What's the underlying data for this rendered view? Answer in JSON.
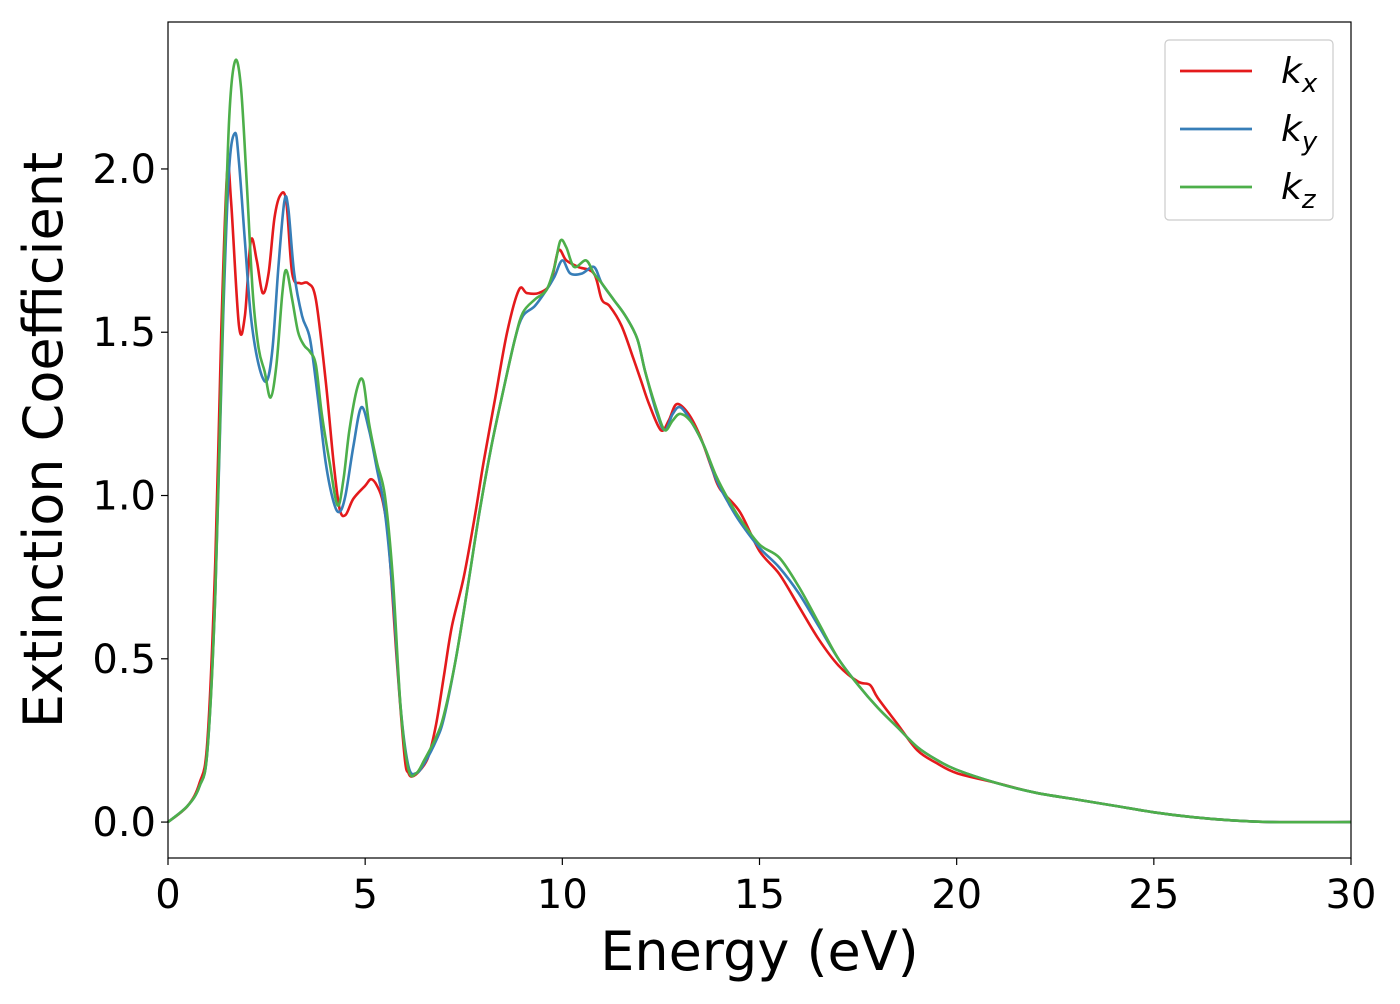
{
  "chart_data": {
    "type": "line",
    "title": "",
    "xlabel": "Energy (eV)",
    "ylabel": "Extinction Coefficient",
    "xlim": [
      0,
      30
    ],
    "ylim": [
      -0.11,
      2.45
    ],
    "xticks": [
      0,
      5,
      10,
      15,
      20,
      25,
      30
    ],
    "xtick_labels": [
      "0",
      "5",
      "10",
      "15",
      "20",
      "25",
      "30"
    ],
    "yticks": [
      0.0,
      0.5,
      1.0,
      1.5,
      2.0
    ],
    "ytick_labels": [
      "0.0",
      "0.5",
      "1.0",
      "1.5",
      "2.0"
    ],
    "grid": false,
    "legend_position": "top-right",
    "series": [
      {
        "name": "k_x",
        "legend_base": "k",
        "legend_sub": "x",
        "color": "#e41a1c",
        "x": [
          0,
          0.5,
          0.8,
          1.0,
          1.2,
          1.35,
          1.5,
          1.6,
          1.8,
          1.95,
          2.1,
          2.25,
          2.4,
          2.55,
          2.7,
          2.85,
          3.0,
          3.15,
          3.35,
          3.55,
          3.75,
          4.0,
          4.2,
          4.35,
          4.5,
          4.7,
          5.0,
          5.15,
          5.3,
          5.45,
          5.6,
          5.8,
          6.0,
          6.1,
          6.2,
          6.4,
          6.6,
          6.8,
          7.0,
          7.2,
          7.5,
          7.8,
          8.0,
          8.3,
          8.6,
          8.9,
          9.1,
          9.4,
          9.7,
          9.9,
          10.1,
          10.4,
          10.8,
          11.0,
          11.2,
          11.5,
          11.8,
          12.0,
          12.2,
          12.5,
          12.7,
          12.9,
          13.2,
          13.5,
          13.8,
          14.0,
          14.5,
          15.0,
          15.5,
          16.0,
          16.5,
          17.0,
          17.5,
          17.8,
          18.0,
          18.5,
          19.0,
          19.5,
          20.0,
          21.0,
          22.0,
          23.0,
          24.0,
          25.0,
          26.0,
          27.0,
          28.0,
          30.0
        ],
        "y": [
          0.0,
          0.05,
          0.12,
          0.25,
          0.8,
          1.5,
          1.99,
          1.9,
          1.52,
          1.55,
          1.78,
          1.72,
          1.62,
          1.68,
          1.85,
          1.92,
          1.9,
          1.68,
          1.65,
          1.65,
          1.6,
          1.35,
          1.1,
          0.96,
          0.94,
          0.99,
          1.03,
          1.05,
          1.03,
          0.98,
          0.85,
          0.5,
          0.2,
          0.15,
          0.14,
          0.16,
          0.2,
          0.3,
          0.45,
          0.6,
          0.75,
          0.95,
          1.1,
          1.3,
          1.5,
          1.63,
          1.62,
          1.62,
          1.65,
          1.75,
          1.72,
          1.7,
          1.68,
          1.6,
          1.58,
          1.52,
          1.42,
          1.35,
          1.28,
          1.2,
          1.23,
          1.28,
          1.25,
          1.18,
          1.08,
          1.02,
          0.95,
          0.83,
          0.76,
          0.66,
          0.56,
          0.48,
          0.43,
          0.42,
          0.38,
          0.3,
          0.22,
          0.18,
          0.15,
          0.12,
          0.09,
          0.07,
          0.05,
          0.03,
          0.015,
          0.005,
          0.0,
          0.0
        ]
      },
      {
        "name": "k_y",
        "legend_base": "k",
        "legend_sub": "y",
        "color": "#377eb8",
        "x": [
          0,
          0.5,
          0.8,
          1.0,
          1.2,
          1.4,
          1.55,
          1.7,
          1.8,
          1.95,
          2.1,
          2.3,
          2.5,
          2.65,
          2.8,
          2.95,
          3.05,
          3.2,
          3.4,
          3.6,
          3.8,
          4.0,
          4.2,
          4.35,
          4.5,
          4.7,
          4.9,
          5.1,
          5.3,
          5.5,
          5.7,
          5.9,
          6.1,
          6.3,
          6.5,
          6.8,
          7.0,
          7.3,
          7.6,
          7.9,
          8.2,
          8.5,
          8.8,
          9.0,
          9.3,
          9.6,
          9.8,
          10.0,
          10.2,
          10.5,
          10.8,
          11.0,
          11.3,
          11.6,
          11.9,
          12.1,
          12.4,
          12.6,
          12.8,
          13.0,
          13.3,
          13.6,
          13.9,
          14.2,
          14.5,
          15.0,
          15.5,
          16.0,
          16.5,
          17.0,
          17.5,
          18.0,
          18.5,
          19.0,
          19.5,
          20.0,
          21.0,
          22.0,
          23.0,
          24.0,
          25.0,
          26.0,
          27.0,
          28.0,
          30.0
        ],
        "y": [
          0.0,
          0.05,
          0.11,
          0.22,
          0.7,
          1.55,
          2.0,
          2.11,
          2.02,
          1.78,
          1.55,
          1.4,
          1.35,
          1.45,
          1.7,
          1.9,
          1.88,
          1.68,
          1.55,
          1.48,
          1.3,
          1.1,
          0.98,
          0.95,
          1.0,
          1.15,
          1.27,
          1.2,
          1.08,
          0.95,
          0.7,
          0.35,
          0.17,
          0.15,
          0.18,
          0.25,
          0.32,
          0.5,
          0.72,
          0.95,
          1.15,
          1.32,
          1.48,
          1.55,
          1.58,
          1.63,
          1.67,
          1.72,
          1.68,
          1.68,
          1.7,
          1.65,
          1.6,
          1.55,
          1.48,
          1.38,
          1.25,
          1.2,
          1.25,
          1.27,
          1.22,
          1.15,
          1.05,
          0.98,
          0.92,
          0.84,
          0.78,
          0.7,
          0.6,
          0.5,
          0.42,
          0.35,
          0.29,
          0.23,
          0.19,
          0.16,
          0.12,
          0.09,
          0.07,
          0.05,
          0.03,
          0.015,
          0.005,
          0.0,
          0.0
        ]
      },
      {
        "name": "k_z",
        "legend_base": "k",
        "legend_sub": "z",
        "color": "#4daf4a",
        "x": [
          0,
          0.5,
          0.8,
          1.0,
          1.2,
          1.4,
          1.55,
          1.7,
          1.85,
          2.0,
          2.15,
          2.3,
          2.45,
          2.6,
          2.75,
          2.9,
          3.0,
          3.15,
          3.3,
          3.45,
          3.6,
          3.75,
          3.9,
          4.1,
          4.3,
          4.45,
          4.6,
          4.8,
          4.95,
          5.1,
          5.3,
          5.5,
          5.7,
          5.9,
          6.1,
          6.3,
          6.5,
          6.8,
          7.0,
          7.3,
          7.6,
          7.9,
          8.2,
          8.5,
          8.8,
          9.0,
          9.3,
          9.6,
          9.8,
          9.95,
          10.1,
          10.3,
          10.6,
          10.8,
          11.0,
          11.3,
          11.6,
          11.9,
          12.1,
          12.4,
          12.6,
          12.8,
          13.0,
          13.3,
          13.6,
          13.9,
          14.2,
          14.5,
          15.0,
          15.5,
          16.0,
          16.5,
          17.0,
          17.5,
          18.0,
          18.5,
          19.0,
          19.5,
          20.0,
          21.0,
          22.0,
          23.0,
          24.0,
          25.0,
          26.0,
          27.0,
          28.0,
          30.0
        ],
        "y": [
          0.0,
          0.05,
          0.11,
          0.22,
          0.7,
          1.6,
          2.15,
          2.33,
          2.25,
          1.95,
          1.62,
          1.45,
          1.38,
          1.3,
          1.4,
          1.62,
          1.69,
          1.6,
          1.5,
          1.46,
          1.44,
          1.4,
          1.25,
          1.1,
          0.97,
          1.05,
          1.2,
          1.33,
          1.35,
          1.22,
          1.1,
          1.0,
          0.75,
          0.35,
          0.16,
          0.15,
          0.19,
          0.26,
          0.33,
          0.5,
          0.72,
          0.95,
          1.15,
          1.32,
          1.48,
          1.56,
          1.6,
          1.63,
          1.7,
          1.78,
          1.76,
          1.7,
          1.72,
          1.68,
          1.65,
          1.6,
          1.55,
          1.48,
          1.38,
          1.26,
          1.2,
          1.23,
          1.25,
          1.22,
          1.15,
          1.06,
          0.99,
          0.93,
          0.85,
          0.81,
          0.72,
          0.61,
          0.5,
          0.42,
          0.35,
          0.29,
          0.23,
          0.19,
          0.16,
          0.12,
          0.09,
          0.07,
          0.05,
          0.03,
          0.015,
          0.005,
          0.0,
          0.0
        ]
      }
    ]
  }
}
